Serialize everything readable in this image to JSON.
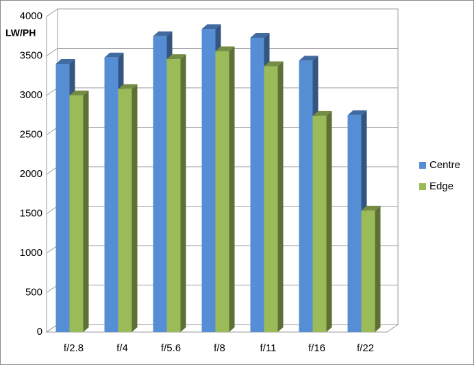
{
  "chart_data": {
    "type": "bar3d",
    "ylabel": "LW/PH",
    "categories": [
      "f/2.8",
      "f/4",
      "f/5.6",
      "f/8",
      "f/11",
      "f/16",
      "f/22"
    ],
    "series": [
      {
        "name": "Centre",
        "color": "#558ed5",
        "values": [
          3400,
          3480,
          3750,
          3840,
          3730,
          3440,
          2750
        ]
      },
      {
        "name": "Edge",
        "color": "#9bbb59",
        "values": [
          3000,
          3080,
          3460,
          3560,
          3370,
          2740,
          1540
        ]
      }
    ],
    "ylim": [
      0,
      4000
    ],
    "yticks": [
      0,
      500,
      1000,
      1500,
      2000,
      2500,
      3000,
      3500,
      4000
    ],
    "grid": true,
    "legend": "right"
  }
}
